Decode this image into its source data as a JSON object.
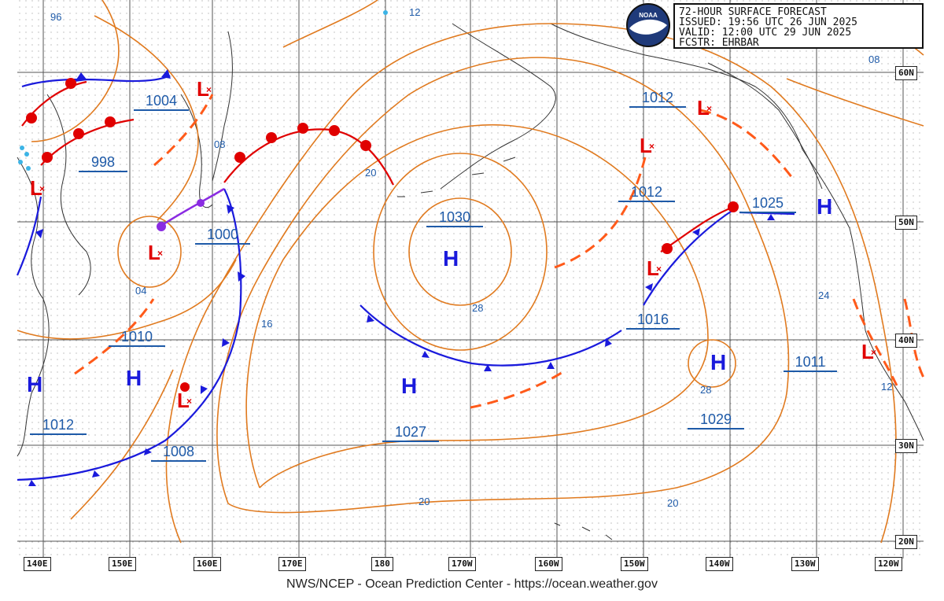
{
  "title": {
    "line1": "72-HOUR SURFACE FORECAST",
    "issued_label": "ISSUED:",
    "issued": "19:56 UTC 26 JUN 2025",
    "valid_label": "VALID:",
    "valid": "12:00 UTC 29 JUN 2025",
    "fcstr_label": "FCSTR:",
    "fcstr": "EHRBAR"
  },
  "logo_text": "NOAA",
  "footer": "NWS/NCEP - Ocean Prediction Center - https://ocean.weather.gov",
  "longitude_ticks": [
    "140E",
    "150E",
    "160E",
    "170E",
    "180",
    "170W",
    "160W",
    "150W",
    "140W",
    "130W",
    "120W"
  ],
  "latitude_ticks": [
    "60N",
    "50N",
    "40N",
    "30N",
    "20N"
  ],
  "pressure_centers": [
    {
      "type": "L",
      "value": "1004"
    },
    {
      "type": "L",
      "value": "998"
    },
    {
      "type": "L",
      "value": "1000"
    },
    {
      "type": "H",
      "value": "1010"
    },
    {
      "type": "H",
      "value": "1012"
    },
    {
      "type": "L",
      "value": "1008"
    },
    {
      "type": "H",
      "value": "1030"
    },
    {
      "type": "H",
      "value": "1027"
    },
    {
      "type": "L",
      "value": "1012"
    },
    {
      "type": "L",
      "value": "1012"
    },
    {
      "type": "L",
      "value": "1016"
    },
    {
      "type": "H",
      "value": "1025"
    },
    {
      "type": "H",
      "value": "1029"
    },
    {
      "type": "L",
      "value": "1011"
    }
  ],
  "isobar_labels": [
    "96",
    "12",
    "08",
    "04",
    "16",
    "20",
    "28",
    "20",
    "20",
    "28",
    "24",
    "12",
    "08"
  ],
  "colors": {
    "isobar": "#e07a1f",
    "cold_front": "#1a1adc",
    "warm_front": "#e00000",
    "occluded": "#8a2be2",
    "trough": "#ff5a1a",
    "grid": "#555555",
    "coast": "#333333",
    "label": "#1e5aa8"
  }
}
